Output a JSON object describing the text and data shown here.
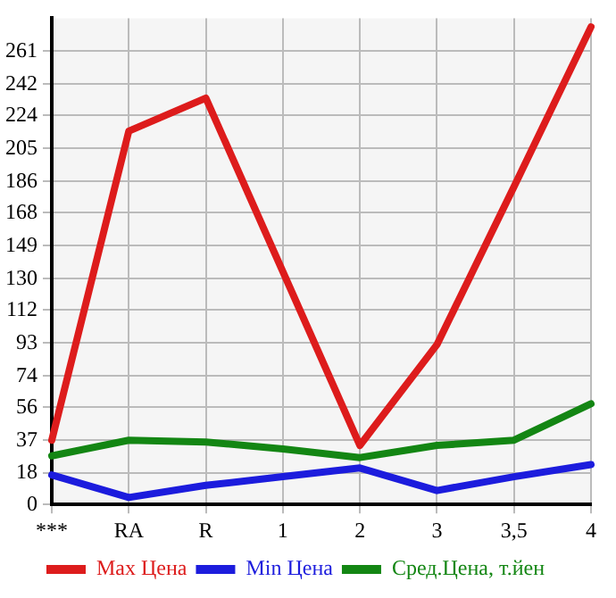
{
  "chart_data": {
    "type": "line",
    "categories": [
      "***",
      "RA",
      "R",
      "1",
      "2",
      "3",
      "3,5",
      "4"
    ],
    "series": [
      {
        "name": "Max Цена",
        "color": "#dd1c1c",
        "values": [
          37,
          215,
          234,
          134,
          34,
          92,
          183,
          275
        ]
      },
      {
        "name": "Min Цена",
        "color": "#1c1cdd",
        "values": [
          17,
          4,
          11,
          16,
          21,
          8,
          16,
          23
        ]
      },
      {
        "name": "Сред.Цена, т.йен",
        "color": "#138613",
        "values": [
          28,
          37,
          36,
          32,
          27,
          34,
          37,
          58
        ]
      }
    ],
    "ylim": [
      0,
      280
    ],
    "yticks": [
      0,
      18,
      37,
      56,
      74,
      93,
      112,
      130,
      149,
      168,
      186,
      205,
      224,
      242,
      261
    ],
    "grid": true,
    "legend": "bottom",
    "marker": "none",
    "line_style": "solid"
  }
}
